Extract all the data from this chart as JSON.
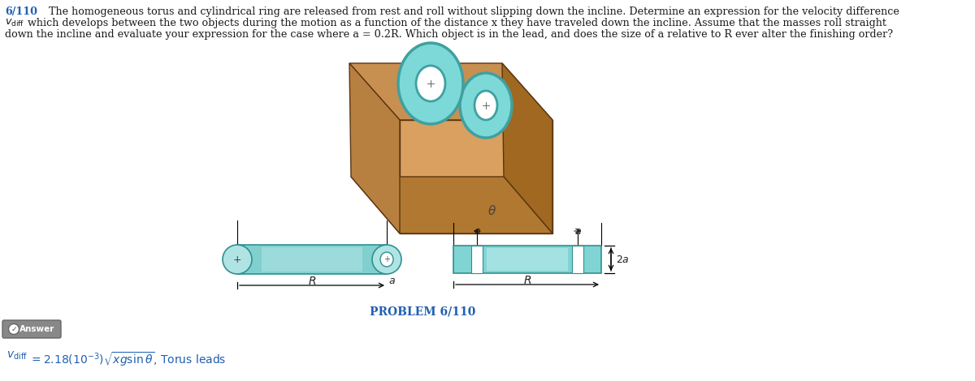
{
  "title_number": "6/110",
  "problem_line1": "The homogeneous torus and cylindrical ring are released from rest and roll without slipping down the incline. Determine an expression for the velocity difference",
  "problem_line2": "which develops between the two objects during the motion as a function of the distance x they have traveled down the incline. Assume that the masses roll straight",
  "problem_line3": "down the incline and evaluate your expression for the case where a = 0.2R. Which object is in the lead, and does the size of a relative to R ever alter the finishing order?",
  "problem_label": "PROBLEM 6/110",
  "bg_color": "#ffffff",
  "text_color": "#1a1a1a",
  "blue_color": "#2060b0",
  "dark_blue": "#1a4080",
  "torus_stroke": "#40a0a0",
  "torus_fill": "#7dd8d8",
  "torus_fill_light": "#a0e4e4",
  "incline_top_color": "#c89050",
  "incline_front_light": "#daa060",
  "incline_right_color": "#a06820",
  "incline_bottom_color": "#b07830",
  "incline_left_color": "#b88040",
  "cylinder_fill": "#80d0d0",
  "cylinder_fill_light": "#b0e4e4",
  "cylinder_stroke": "#309090",
  "ring_fill": "#80d4d4",
  "ring_fill_light": "#b4e8e8",
  "ring_stroke": "#309090"
}
